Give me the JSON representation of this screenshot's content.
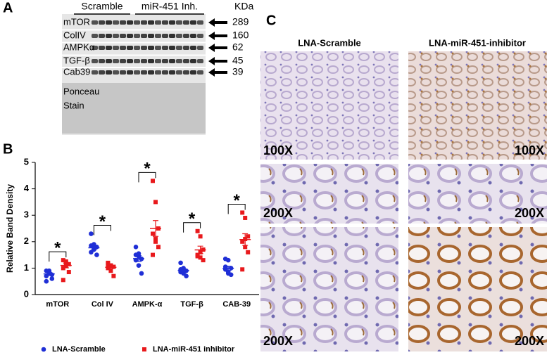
{
  "panel_labels": [
    "A",
    "B",
    "C"
  ],
  "blot": {
    "unit": "KDa",
    "groups": [
      "Scramble",
      "miR-451 Inh."
    ],
    "bands": [
      {
        "label": "mTOR",
        "kda": 289
      },
      {
        "label": "ColIV",
        "kda": 160
      },
      {
        "label": "AMPKα",
        "kda": 62
      },
      {
        "label": "TGF-β",
        "kda": 45
      },
      {
        "label": "Cab39",
        "kda": 39
      }
    ],
    "loading_control": [
      "Ponceau",
      "Stain"
    ]
  },
  "chart_data": {
    "type": "scatter",
    "y_label": "Relative Band Density",
    "categories": [
      "mTOR",
      "Col IV",
      "AMPK-α",
      "TGF-β",
      "CAB-39"
    ],
    "ylim": [
      0,
      5
    ],
    "yticks": [
      0,
      1,
      2,
      3,
      4,
      5
    ],
    "annotations": [
      "*",
      "*",
      "*",
      "*",
      "*"
    ],
    "series": [
      {
        "name": "LNA-Scramble",
        "color": "#1f2fd6",
        "values": [
          [
            0.9,
            0.85,
            0.75,
            0.7,
            0.8,
            0.6,
            0.5,
            0.9
          ],
          [
            2.3,
            1.9,
            1.8,
            1.6,
            1.7,
            1.5,
            1.85,
            1.75
          ],
          [
            1.8,
            1.45,
            1.35,
            1.3,
            1.1,
            0.8,
            1.5,
            1.55
          ],
          [
            1.2,
            1.0,
            0.9,
            0.85,
            0.8,
            0.7,
            0.95,
            0.9
          ],
          [
            1.35,
            1.3,
            1.0,
            0.95,
            0.8,
            0.75,
            1.05,
            0.85
          ]
        ],
        "means": [
          0.78,
          1.77,
          1.36,
          0.91,
          0.99
        ],
        "errors": [
          0.06,
          0.08,
          0.11,
          0.05,
          0.08
        ]
      },
      {
        "name": "LNA-miR-451 inhibitor",
        "color": "#e8191c",
        "values": [
          [
            1.3,
            1.2,
            1.15,
            1.0,
            1.25,
            0.85,
            0.55,
            1.1
          ],
          [
            1.2,
            1.1,
            1.05,
            1.0,
            0.9,
            0.7,
            1.15,
            1.1
          ],
          [
            4.3,
            3.5,
            2.5,
            2.3,
            2.0,
            1.8,
            1.5,
            2.1
          ],
          [
            2.4,
            2.2,
            1.7,
            1.5,
            1.4,
            1.3,
            1.45,
            1.6
          ],
          [
            3.1,
            2.9,
            2.2,
            2.0,
            1.8,
            1.6,
            0.95,
            2.1
          ]
        ],
        "means": [
          1.1,
          1.03,
          2.5,
          1.69,
          2.08
        ],
        "errors": [
          0.09,
          0.05,
          0.3,
          0.14,
          0.22
        ]
      }
    ]
  },
  "histology": {
    "columns": [
      "LNA-Scramble",
      "LNA-miR-451-inhibitor"
    ],
    "magnifications": [
      "100X",
      "200X",
      "200X"
    ]
  }
}
